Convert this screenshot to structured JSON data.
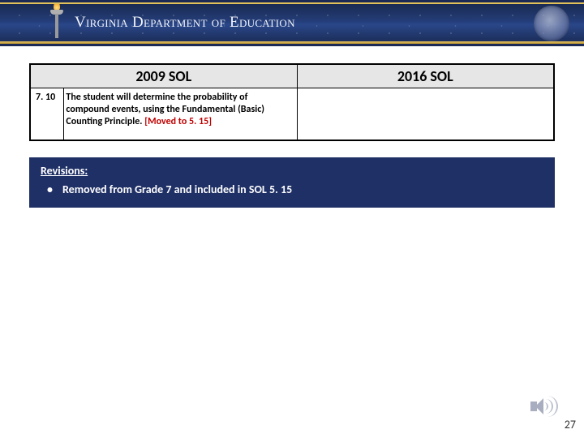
{
  "header": {
    "department_name": "Virginia Department of Education"
  },
  "table": {
    "left_header": "2009 SOL",
    "right_header": "2016 SOL",
    "row": {
      "code": "7. 10",
      "description_main": "The student will determine the probability of compound events, using the Fundamental (Basic) Counting Principle.",
      "description_moved": "[Moved to 5. 15]"
    }
  },
  "revisions": {
    "title": "Revisions:",
    "items": [
      "Removed from Grade 7 and included in SOL 5. 15"
    ]
  },
  "page_number": "27",
  "colors": {
    "banner_navy": "#1f3066",
    "gold": "#e2c15a",
    "moved_red": "#c00000",
    "table_header_bg": "#e6e6e6"
  }
}
